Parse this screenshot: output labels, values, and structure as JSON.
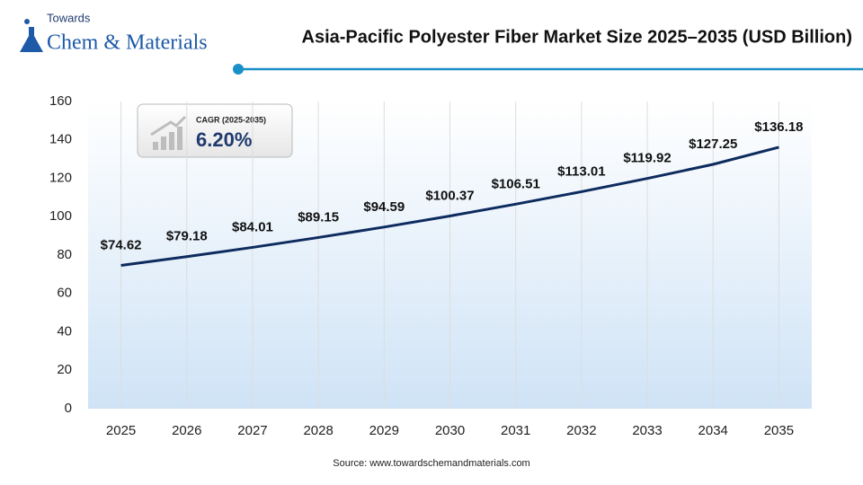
{
  "logo": {
    "top": "Towards",
    "main": "Chem & Materials"
  },
  "chart_data": {
    "type": "line",
    "title": "Asia-Pacific Polyester Fiber Market Size 2025–2035 (USD Billion)",
    "categories": [
      "2025",
      "2026",
      "2027",
      "2028",
      "2029",
      "2030",
      "2031",
      "2032",
      "2033",
      "2034",
      "2035"
    ],
    "values": [
      74.62,
      79.18,
      84.01,
      89.15,
      94.59,
      100.37,
      106.51,
      113.01,
      119.92,
      127.25,
      136.18
    ],
    "value_labels": [
      "$74.62",
      "$79.18",
      "$84.01",
      "$89.15",
      "$94.59",
      "$100.37",
      "$106.51",
      "$113.01",
      "$119.92",
      "$127.25",
      "$136.18"
    ],
    "color": "#0d2b5e",
    "ylim": [
      0,
      160
    ],
    "yticks": [
      0,
      20,
      40,
      60,
      80,
      100,
      120,
      140,
      160
    ],
    "grid": "x",
    "annotations": [
      "CAGR (2025-2035)",
      "6.20%"
    ],
    "source": "Source: www.towardschemandmaterials.com"
  }
}
